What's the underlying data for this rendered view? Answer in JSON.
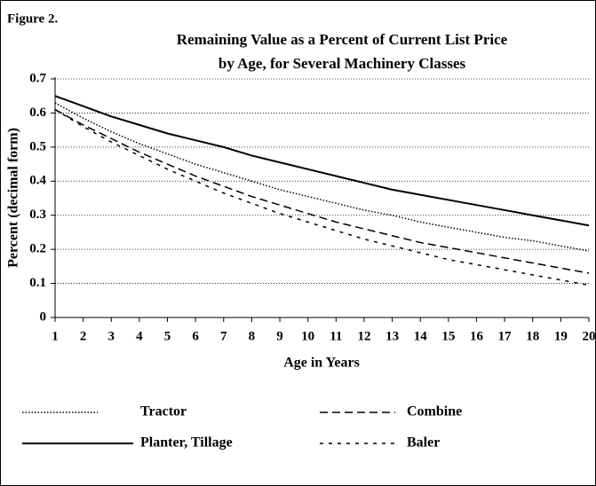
{
  "chart_data": {
    "type": "line",
    "figure_label": "Figure 2.",
    "title": "Remaining Value as a Percent of Current List Price",
    "subtitle": "by Age, for Several Machinery Classes",
    "x_label": "Age in Years",
    "y_label": "Percent (decimal form)",
    "x": [
      1,
      2,
      3,
      4,
      5,
      6,
      7,
      8,
      9,
      10,
      11,
      12,
      13,
      14,
      15,
      16,
      17,
      18,
      19,
      20
    ],
    "xlim": [
      1,
      20
    ],
    "xticks": [
      1,
      2,
      3,
      4,
      5,
      6,
      7,
      8,
      9,
      10,
      11,
      12,
      13,
      14,
      15,
      16,
      17,
      18,
      19,
      20
    ],
    "ylim": [
      0,
      0.7
    ],
    "yticks": [
      0,
      0.1,
      0.2,
      0.3,
      0.4,
      0.5,
      0.6,
      0.7
    ],
    "grid": true,
    "legend": "bottom",
    "series": [
      {
        "name": "Tractor",
        "color": "#000000",
        "style": "dotted",
        "values": [
          0.63,
          0.585,
          0.545,
          0.51,
          0.48,
          0.45,
          0.425,
          0.4,
          0.375,
          0.355,
          0.335,
          0.315,
          0.3,
          0.28,
          0.265,
          0.25,
          0.235,
          0.225,
          0.21,
          0.195
        ]
      },
      {
        "name": "Combine",
        "color": "#000000",
        "style": "long-dash",
        "values": [
          0.61,
          0.565,
          0.525,
          0.485,
          0.45,
          0.415,
          0.385,
          0.355,
          0.33,
          0.305,
          0.28,
          0.26,
          0.24,
          0.22,
          0.205,
          0.19,
          0.175,
          0.16,
          0.145,
          0.13
        ]
      },
      {
        "name": "Planter, Tillage",
        "color": "#000000",
        "style": "solid",
        "values": [
          0.65,
          0.62,
          0.59,
          0.565,
          0.54,
          0.52,
          0.5,
          0.475,
          0.455,
          0.435,
          0.415,
          0.395,
          0.375,
          0.36,
          0.345,
          0.33,
          0.315,
          0.3,
          0.285,
          0.27
        ]
      },
      {
        "name": "Baler",
        "color": "#000000",
        "style": "short-dash",
        "values": [
          0.61,
          0.56,
          0.515,
          0.475,
          0.435,
          0.4,
          0.365,
          0.335,
          0.305,
          0.28,
          0.255,
          0.23,
          0.21,
          0.19,
          0.17,
          0.155,
          0.14,
          0.125,
          0.11,
          0.095
        ]
      }
    ]
  }
}
